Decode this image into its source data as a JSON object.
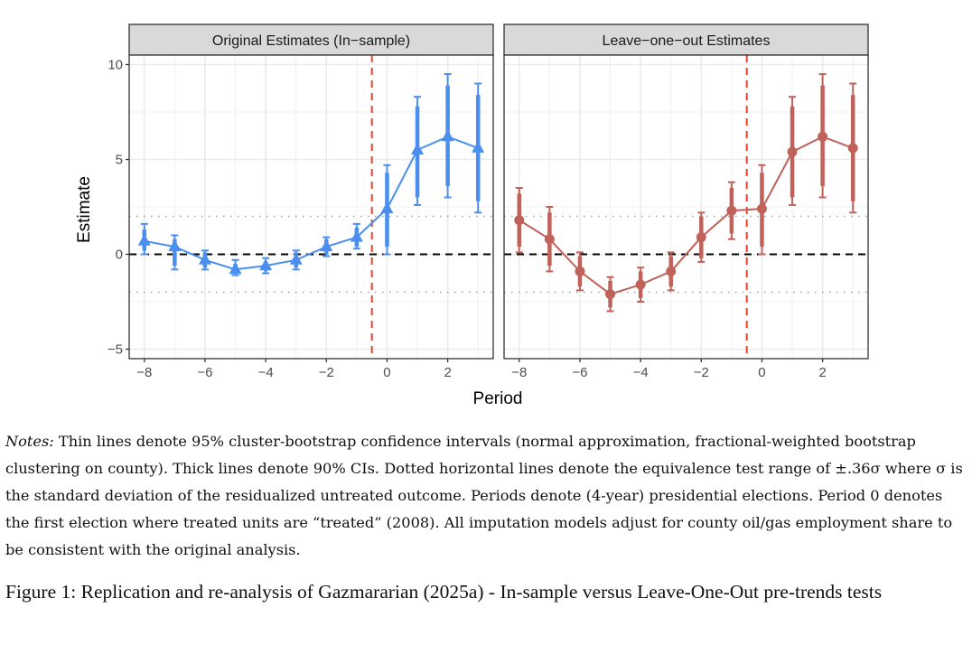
{
  "chart_data": {
    "type": "line",
    "subtype": "event-study coefficient plot with confidence intervals, faceted",
    "xlabel": "Period",
    "ylabel": "Estimate",
    "xlim": [
      -8.5,
      3.5
    ],
    "ylim": [
      -5.5,
      10.5
    ],
    "x_ticks": [
      -8,
      -6,
      -4,
      -2,
      0,
      2
    ],
    "y_ticks": [
      -5,
      0,
      5,
      10
    ],
    "grid": true,
    "reference_lines": {
      "zero_line": {
        "y": 0,
        "style": "dashed",
        "color": "#000000"
      },
      "equivalence_bounds": {
        "y": [
          -2,
          2
        ],
        "style": "dotted",
        "color": "#a0a0a0"
      },
      "treatment_line": {
        "x": -0.5,
        "style": "dashed",
        "color": "#e8412c"
      }
    },
    "panels": [
      {
        "title": "Original Estimates (In−sample)",
        "color": "#4a8ef0",
        "marker": "triangle",
        "x": [
          -8,
          -7,
          -6,
          -5,
          -4,
          -3,
          -2,
          -1,
          0,
          1,
          2,
          3
        ],
        "estimate": [
          0.7,
          0.4,
          -0.3,
          -0.8,
          -0.6,
          -0.3,
          0.4,
          0.9,
          2.4,
          5.5,
          6.2,
          5.6
        ],
        "ci95_low": [
          0.0,
          -0.8,
          -0.8,
          -1.1,
          -1.0,
          -0.8,
          -0.1,
          0.3,
          0.0,
          2.6,
          3.0,
          2.2
        ],
        "ci95_high": [
          1.6,
          1.0,
          0.2,
          -0.3,
          -0.2,
          0.2,
          0.9,
          1.6,
          4.7,
          8.3,
          9.5,
          9.0
        ],
        "ci90_low": [
          0.2,
          -0.6,
          -0.7,
          -1.0,
          -0.9,
          -0.7,
          0.0,
          0.4,
          0.4,
          3.0,
          3.6,
          2.8
        ],
        "ci90_high": [
          1.3,
          0.8,
          0.1,
          -0.5,
          -0.4,
          0.1,
          0.8,
          1.4,
          4.3,
          7.8,
          8.9,
          8.4
        ]
      },
      {
        "title": "Leave−one−out Estimates",
        "color": "#c0625a",
        "marker": "circle",
        "x": [
          -8,
          -7,
          -6,
          -5,
          -4,
          -3,
          -2,
          -1,
          0,
          1,
          2,
          3
        ],
        "estimate": [
          1.8,
          0.8,
          -0.9,
          -2.1,
          -1.6,
          -0.9,
          0.9,
          2.3,
          2.4,
          5.4,
          6.2,
          5.6
        ],
        "ci95_low": [
          0.1,
          -0.9,
          -1.9,
          -3.0,
          -2.5,
          -1.9,
          -0.4,
          0.8,
          0.0,
          2.6,
          3.0,
          2.2
        ],
        "ci95_high": [
          3.5,
          2.5,
          0.1,
          -1.2,
          -0.7,
          0.1,
          2.2,
          3.8,
          4.7,
          8.3,
          9.5,
          9.0
        ],
        "ci90_low": [
          0.4,
          -0.6,
          -1.7,
          -2.8,
          -2.3,
          -1.7,
          -0.2,
          1.1,
          0.4,
          3.0,
          3.6,
          2.8
        ],
        "ci90_high": [
          3.2,
          2.2,
          -0.1,
          -1.4,
          -0.9,
          -0.1,
          2.0,
          3.5,
          4.3,
          7.8,
          8.9,
          8.4
        ]
      }
    ]
  },
  "notes": {
    "label": "Notes:",
    "text": " Thin lines denote 95% cluster-bootstrap confidence intervals (normal approximation, fractional-weighted bootstrap clustering on county). Thick lines denote 90% CIs. Dotted horizontal lines denote the equivalence test range of ±.36σ where σ is the standard deviation of the residualized untreated outcome. Periods denote (4-year) presidential elections. Period 0 denotes the first election where treated units are “treated” (2008). All imputation models adjust for county oil/gas employment share to be consistent with the original analysis."
  },
  "caption": "Figure 1: Replication and re-analysis of Gazmararian (2025a) - In-sample versus Leave-One-Out pre-trends tests"
}
